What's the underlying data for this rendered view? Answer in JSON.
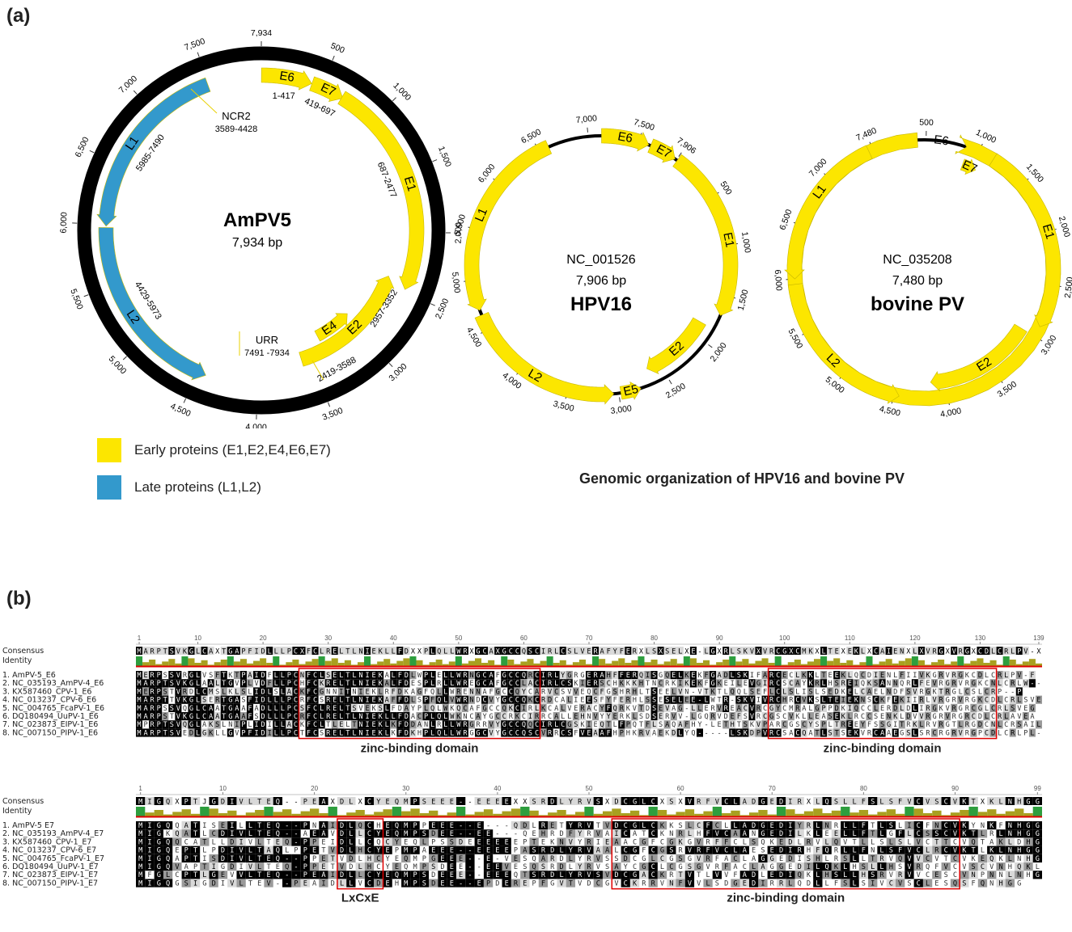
{
  "panel_a": {
    "label": "(a)",
    "ampv5": {
      "name": "AmPV5",
      "size": "7,934 bp",
      "ticks": [
        "7,934",
        "500",
        "1,000",
        "1,500",
        "2,000",
        "2,500",
        "3,000",
        "3,500",
        "4,000",
        "4,500",
        "5,000",
        "5,500",
        "6,000",
        "6,500",
        "7,000",
        "7,500"
      ],
      "genes": [
        {
          "name": "E6",
          "range": "1-417"
        },
        {
          "name": "E7",
          "range": "419-697"
        },
        {
          "name": "E1",
          "range": "687-2477"
        },
        {
          "name": "E2",
          "range": "2419-3588"
        },
        {
          "name": "E4",
          "range": "2957-3352"
        },
        {
          "name": "L2",
          "range": "4429-5973"
        },
        {
          "name": "L1",
          "range": "5985-7490"
        }
      ],
      "ncr2": {
        "name": "NCR2",
        "range": "3589-4428"
      },
      "urr": {
        "name": "URR",
        "range": "7491 -7934"
      }
    },
    "hpv16": {
      "name": "HPV16",
      "accession": "NC_001526",
      "size": "7,906 bp",
      "ticks": [
        "7,906",
        "500",
        "1,000",
        "1,500",
        "2,000",
        "2,500",
        "3,000",
        "3,500",
        "4,000",
        "4,500",
        "5,000",
        "5,500",
        "6,000",
        "6,500",
        "7,000",
        "7,500"
      ],
      "genes": [
        "E6",
        "E7",
        "E1",
        "E2",
        "E5",
        "L2",
        "L1"
      ]
    },
    "bovine": {
      "name": "bovine PV",
      "accession": "NC_035208",
      "size": "7,480 bp",
      "ticks": [
        "500",
        "1,000",
        "1,500",
        "2,000",
        "2,500",
        "3,000",
        "3,500",
        "4,000",
        "4,500",
        "5,000",
        "5,500",
        "6,000",
        "6,500",
        "7,000",
        "7,480"
      ],
      "genes": [
        "E6",
        "E7",
        "E1",
        "E2",
        "L2",
        "L1"
      ]
    },
    "legend": [
      {
        "label": "Early proteins  (E1,E2,E4,E6,E7)",
        "color": "#fce600"
      },
      {
        "label": "Late proteins (L1,L2)",
        "color": "#3399cc"
      }
    ],
    "caption": "Genomic organization of HPV16 and bovine PV"
  },
  "panel_b": {
    "label": "(b)",
    "colors": {
      "identical": "#000000",
      "similar": "#9a9a9a",
      "weak": "#d8d8d8",
      "green": "#2e9e3e",
      "olive": "#a8a020",
      "red": "#e00000"
    },
    "e6": {
      "ruler": [
        "1",
        "10",
        "20",
        "30",
        "40",
        "50",
        "60",
        "70",
        "80",
        "90",
        "100",
        "110",
        "120",
        "130",
        "139"
      ],
      "consensus_label": "Consensus",
      "identity_label": "Identity",
      "consensus": "MARPTSVKGLCAXTGAPFIDLLLPCXFCLRELTLNIEKLLFDXXPLQLLWRXGCAXGCCQSCIRLCSLVERAFYFERXLSXSELXE-LGXRLSKVXVRCGXCMKXLTEXEKLXCAIENXLXVRGXVRGXCDLCRLPV-X",
      "rows": [
        {
          "label": "1. AmPV-5_E6",
          "seq": "MERPSSVRGLVSFTKTPAIDFLLPCNFCLSELTLNIEKALFDLWPLELLWRNGCAFGCCQRCIRLYGRGERAHFFERQISGQELKEKFGADLSKIFARCECLKKLTEEKLQCDIENLFIIVKGRVRGKCDLCRLPV-F"
        },
        {
          "label": "2. NC_035193_AmPV-4_E6",
          "seq": "MARPTSVKGLAALTGVPLVDFLLPCHFCKRELTLNIEKALFDESPLRLLWREGCAFGCCLACIRLCSKIERSCHKKKHTNCRKIKEKFGKEILEVGIRCSCAYKRLHSREIQKSANNQRLFEVRGRVRGKCNLCRLW--T"
        },
        {
          "label": "3. KX587460_CPV-1_E6",
          "seq": "MERPSTVRDLCMSLKLSLIDLSLACKFCGNNITNIEKLRFDKAGFQLLWRENNAFGCCQYCARVCSVVEQCFGSHRHLTSEELVN-VTKTLQQLSEFLCLSLISLSEDKELCAELNDFSVRGKTRGLCSLCRP--P"
        },
        {
          "label": "4. NC_013237_CPV-6_E6",
          "seq": "MARPTTVKGLSERTGASFIDLLLPCRFCSRELTLNIEKAFFDLSPFQLVWRNDCVYGCCQKCRDCALIEESFYFERHLSSESELEE-LWTR-SKVIVRCHRCVKSLTEIEKNSCKFEKIIRLVRGRVRGKCDLCRLSVEG"
        },
        {
          "label": "5. NC_004765_FcaPV-1_E6",
          "seq": "MARPSSVQGLCAATGAAFADLLLPCSFCLRELTSVEKSLFDAYPLQLWKQCAFGCCQKCIRLKCALVERACYFQRKVTDSEVAG-LLERVREACVRCGYCMRALGPPDKIQCCLERDLDLIRGKVRGRCGLCRLSVEG"
        },
        {
          "label": "6. DQ180494_UuPV-1_E6",
          "seq": "MARPSTVKGLCAATGAAFSDLLLPCRFCLRELTLNIEKLLFDACPLQLWKNCAYGCCRKCIRRCALLEHNVYYERKLSDSERVV-LGQRVDEFSVRCGSCVKLLEASEKLRCCSENKLDVVRGRVRGRCDLCRLAVEA"
        },
        {
          "label": "7. NC_023873_EIPV-1_E6",
          "seq": "MPRPTSVQGLAKSLNIPLIDILLACKFCLTLELTNIEKLKFDDANLRLLWRGRRVYGCCQQCIRLCGSKIEQTLFPQTFLSAQAFHY-LETHTSKVPARCGSCYSPLTREEYFSSGITRKLRVRGTLRGDCNLCRSAILE"
        },
        {
          "label": "8. NC_007150_PIPV-1_E6",
          "seq": "MARPTSVEDLGKLLGVPFIDILLPCTFCSRELTLNIEKLKFDKHPLQLLWRGGCVYGCCQSCVRRCSFVEAAFHPHKRVAEKDLYQ-----LSKDPVRCSACQATLSTSEKVRCAAEGSLSRCRGRVRGPCDLCRLPL-E"
        }
      ],
      "domains": [
        "zinc-binding domain",
        "zinc-binding domain"
      ]
    },
    "e7": {
      "ruler": [
        "1",
        "10",
        "20",
        "30",
        "40",
        "50",
        "60",
        "70",
        "80",
        "90",
        "99"
      ],
      "consensus_label": "Consensus",
      "identity_label": "Identity",
      "consensus": "MIGQXPTJGDIVLTEQ--PEAXDLXCYEQMPSEEE--EEEEXXSRDLYRVSXDCGLCXSXVRFVCLADGEDIRXLQSLLFSLSFVCVSCVKTXKLNHGG",
      "rows": [
        {
          "label": "1. AmPV-5 E7",
          "seq": "MIGQQATISEILLTEQ--PNAIDLQCHEQMPPEEE--E---QDLRETYRVTVDCGLCKKSLCFCLLADGEDIYRLNRLLFTLSLICFNCVKYNKFNHGG"
        },
        {
          "label": "2. NC_035193_AmPV-4_E7",
          "seq": "MIGKQATLCDIVLTEQ--AEAVDLLCYEQMPSDEE--EE---QEHRDFYRVAICATCKNRLHFVCAANGEDILKLEELLFTLGFLCSSCVKTLRLNHGG"
        },
        {
          "label": "3. KX587460_CPV-1_E7",
          "seq": "MIGQQCATLLDIVLTEQ-PPEIDLLCQCYEQLPSSDEEEEEEPTEKNVYRIEAACGFCGKGVRFFCLSQKEDLRVLQVTLLSLSLVCTTCVQTAKLDHGG"
        },
        {
          "label": "4. NC_013237_CPV-6_E7",
          "seq": "MIGQEPTLPDIVLTAQLPPETVDLHCYEPMPAEEE--EEEEPASRDLYRVAALCGFCGSRVRFVCLAESEDIRHFQRLLFNLSFVCLRCVKTLKLNHGG"
        },
        {
          "label": "5. NC_004765_FcaPV-1_E7",
          "seq": "MIGQAPTISDIVLTEQ--PPETVDLHCYEQMPGEEE--E-VESQARDLYRVSSDCGLCGSGVRFACLAGGEDISHLRSLLTRVQVVCVTCVKEQKLNHGG"
        },
        {
          "label": "6. DQ180494_UuPV-1_E7",
          "seq": "MIGQVAPTIGDIVLTEQ-PPETVDLHCYEQMPSDEE--EEVESQSRDLYRVSAYCGCLCGSGVRFACLAGGEDILQKLHSLLHSVRQFVCVSCVNHQKLNHGG"
        },
        {
          "label": "7. NC_023873_EIPV-1_E7",
          "seq": "MFGLCPTLGEVVLTEQ--PEAIDLLCYEQMPSDEEE--EEEQTSRDLYRVSVDCGACKRTVTLVVFADLEDIQKLHSLLHSRVRVVCESCVNPNNLNHGG"
        },
        {
          "label": "8. NC_007150_PIPV-1_E7",
          "seq": "MIGQGSIGDIVLTEV--PEAIDLLVCDEHMPSDEE--EPDEREPFGVTVDCGVCKRRVNFVVLSDGEDIRRLQDLLFSLSIVCVSCLESQSFQNHGG"
        }
      ],
      "domains": [
        "LxCxE",
        "zinc-binding domain"
      ]
    }
  }
}
